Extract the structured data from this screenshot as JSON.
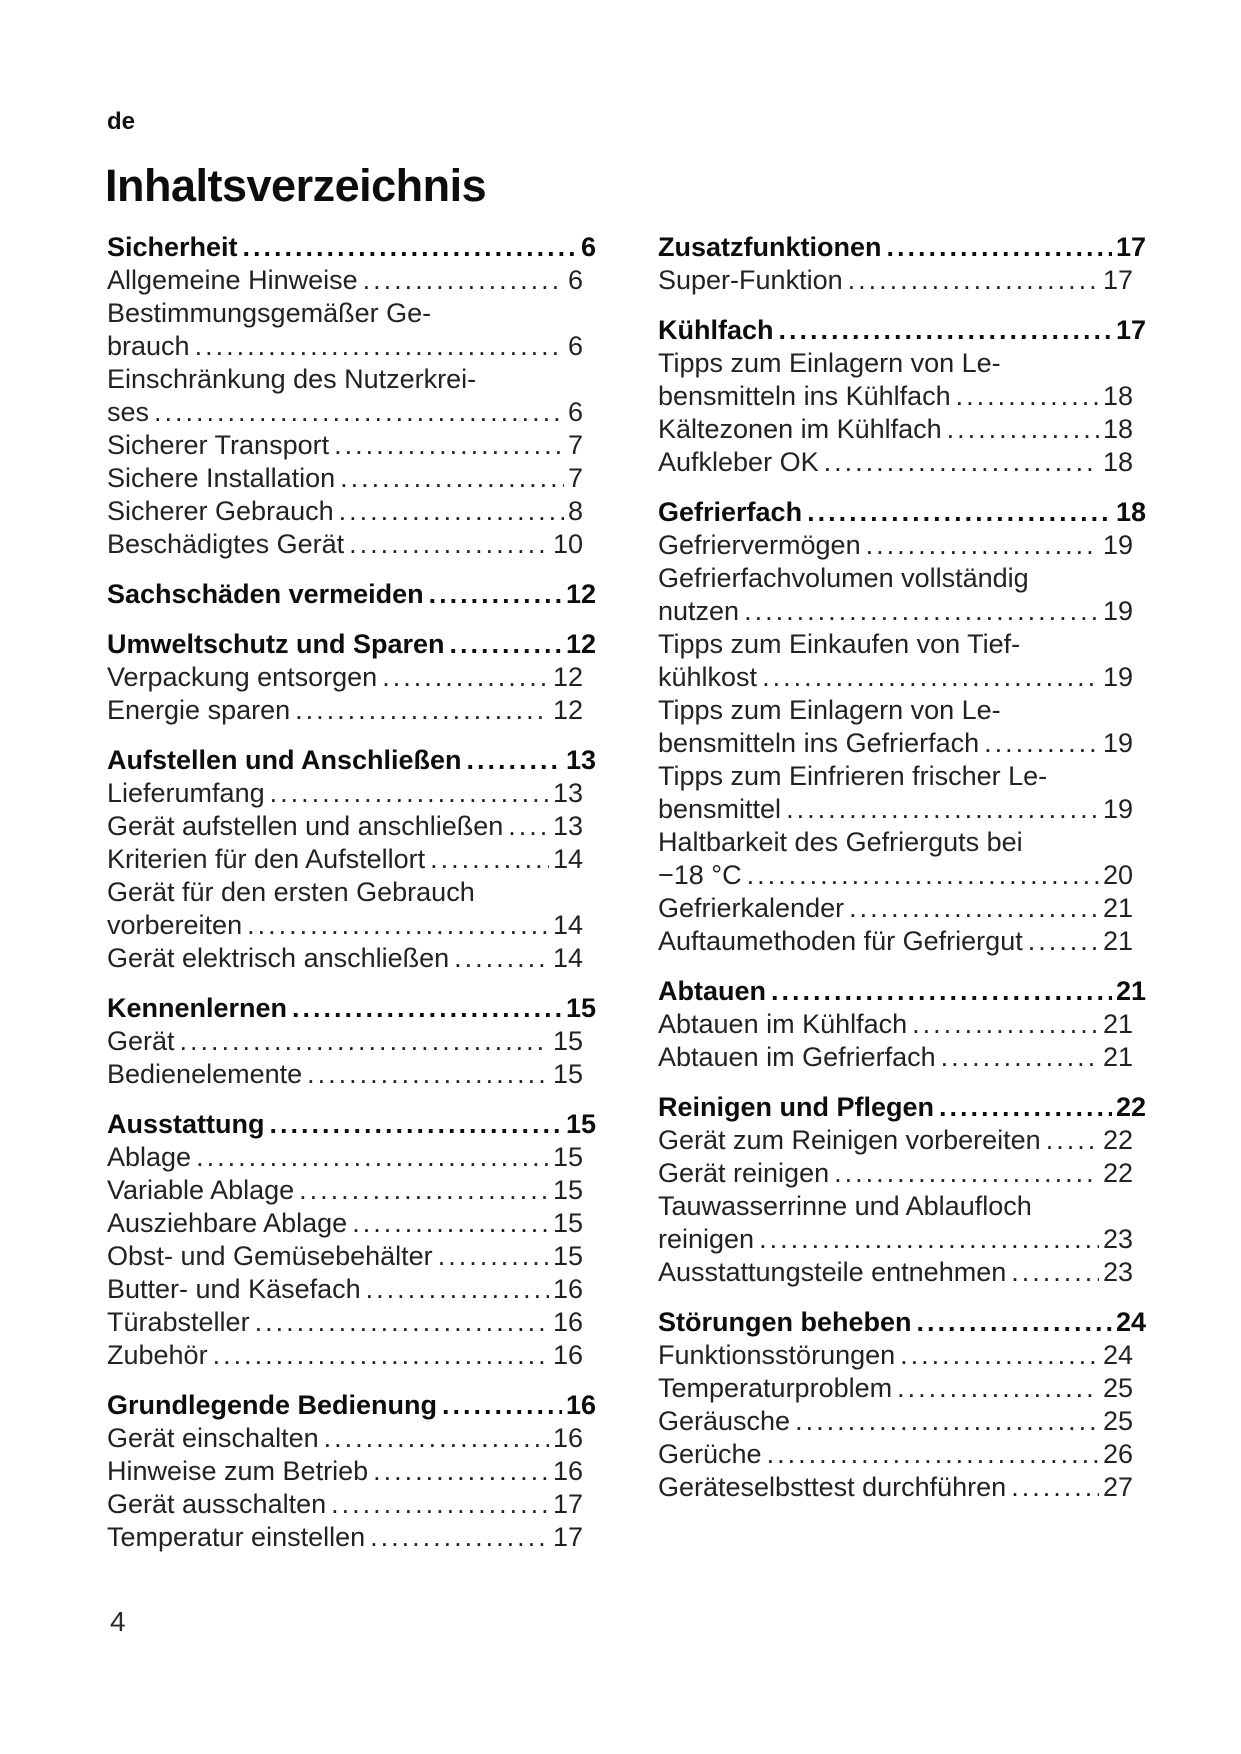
{
  "document": {
    "language_code": "de",
    "title": "Inhaltsverzeichnis",
    "footer_page_number": "4"
  },
  "toc": {
    "left_column": [
      {
        "style": "heading",
        "text": "Sicherheit",
        "page": "6",
        "gap": false
      },
      {
        "style": "entry",
        "text": "Allgemeine Hinweise",
        "page": "6",
        "gap": false
      },
      {
        "style": "entry",
        "text": "Bestimmungsgemäßer Ge-",
        "page": null,
        "gap": false
      },
      {
        "style": "entry",
        "text": "brauch",
        "page": "6",
        "gap": false
      },
      {
        "style": "entry",
        "text": "Einschränkung des Nutzerkrei-",
        "page": null,
        "gap": false
      },
      {
        "style": "entry",
        "text": "ses",
        "page": "6",
        "gap": false
      },
      {
        "style": "entry",
        "text": "Sicherer Transport",
        "page": "7",
        "gap": false
      },
      {
        "style": "entry",
        "text": "Sichere Installation",
        "page": "7",
        "gap": false
      },
      {
        "style": "entry",
        "text": "Sicherer Gebrauch",
        "page": "8",
        "gap": false
      },
      {
        "style": "entry",
        "text": "Beschädigtes Gerät",
        "page": "10",
        "gap": false
      },
      {
        "style": "heading",
        "text": "Sachschäden vermeiden",
        "page": "12",
        "gap": true
      },
      {
        "style": "heading",
        "text": "Umweltschutz und Sparen",
        "page": "12",
        "gap": true
      },
      {
        "style": "entry",
        "text": "Verpackung entsorgen",
        "page": "12",
        "gap": false
      },
      {
        "style": "entry",
        "text": "Energie sparen",
        "page": "12",
        "gap": false
      },
      {
        "style": "heading",
        "text": "Aufstellen und Anschließen",
        "page": "13",
        "gap": true
      },
      {
        "style": "entry",
        "text": "Lieferumfang",
        "page": "13",
        "gap": false
      },
      {
        "style": "entry",
        "text": "Gerät aufstellen und anschließen",
        "page": "13",
        "gap": false
      },
      {
        "style": "entry",
        "text": "Kriterien für den Aufstellort",
        "page": "14",
        "gap": false
      },
      {
        "style": "entry",
        "text": "Gerät für den ersten Gebrauch",
        "page": null,
        "gap": false
      },
      {
        "style": "entry",
        "text": "vorbereiten",
        "page": "14",
        "gap": false
      },
      {
        "style": "entry",
        "text": "Gerät elektrisch anschließen",
        "page": "14",
        "gap": false
      },
      {
        "style": "heading",
        "text": "Kennenlernen",
        "page": "15",
        "gap": true
      },
      {
        "style": "entry",
        "text": "Gerät",
        "page": "15",
        "gap": false
      },
      {
        "style": "entry",
        "text": "Bedienelemente",
        "page": "15",
        "gap": false
      },
      {
        "style": "heading",
        "text": "Ausstattung",
        "page": "15",
        "gap": true
      },
      {
        "style": "entry",
        "text": "Ablage",
        "page": "15",
        "gap": false
      },
      {
        "style": "entry",
        "text": "Variable Ablage",
        "page": "15",
        "gap": false
      },
      {
        "style": "entry",
        "text": "Ausziehbare Ablage",
        "page": "15",
        "gap": false
      },
      {
        "style": "entry",
        "text": "Obst- und Gemüsebehälter",
        "page": "15",
        "gap": false
      },
      {
        "style": "entry",
        "text": "Butter- und Käsefach",
        "page": "16",
        "gap": false
      },
      {
        "style": "entry",
        "text": "Türabsteller",
        "page": "16",
        "gap": false
      },
      {
        "style": "entry",
        "text": "Zubehör",
        "page": "16",
        "gap": false
      },
      {
        "style": "heading",
        "text": "Grundlegende Bedienung",
        "page": "16",
        "gap": true
      },
      {
        "style": "entry",
        "text": "Gerät einschalten",
        "page": "16",
        "gap": false
      },
      {
        "style": "entry",
        "text": "Hinweise zum Betrieb",
        "page": "16",
        "gap": false
      },
      {
        "style": "entry",
        "text": "Gerät ausschalten",
        "page": "17",
        "gap": false
      },
      {
        "style": "entry",
        "text": "Temperatur einstellen",
        "page": "17",
        "gap": false
      }
    ],
    "right_column": [
      {
        "style": "heading",
        "text": "Zusatzfunktionen",
        "page": "17",
        "gap": false
      },
      {
        "style": "entry",
        "text": "Super-Funktion",
        "page": "17",
        "gap": false
      },
      {
        "style": "heading",
        "text": "Kühlfach",
        "page": "17",
        "gap": true
      },
      {
        "style": "entry",
        "text": "Tipps zum Einlagern von Le-",
        "page": null,
        "gap": false
      },
      {
        "style": "entry",
        "text": "bensmitteln ins Kühlfach",
        "page": "18",
        "gap": false
      },
      {
        "style": "entry",
        "text": "Kältezonen im Kühlfach",
        "page": "18",
        "gap": false
      },
      {
        "style": "entry",
        "text": "Aufkleber OK",
        "page": "18",
        "gap": false
      },
      {
        "style": "heading",
        "text": "Gefrierfach",
        "page": "18",
        "gap": true
      },
      {
        "style": "entry",
        "text": "Gefriervermögen",
        "page": "19",
        "gap": false
      },
      {
        "style": "entry",
        "text": "Gefrierfachvolumen vollständig",
        "page": null,
        "gap": false
      },
      {
        "style": "entry",
        "text": "nutzen",
        "page": "19",
        "gap": false
      },
      {
        "style": "entry",
        "text": "Tipps zum Einkaufen von Tief-",
        "page": null,
        "gap": false
      },
      {
        "style": "entry",
        "text": "kühlkost",
        "page": "19",
        "gap": false
      },
      {
        "style": "entry",
        "text": "Tipps zum Einlagern von Le-",
        "page": null,
        "gap": false
      },
      {
        "style": "entry",
        "text": "bensmitteln ins Gefrierfach",
        "page": "19",
        "gap": false
      },
      {
        "style": "entry",
        "text": "Tipps zum Einfrieren frischer Le-",
        "page": null,
        "gap": false
      },
      {
        "style": "entry",
        "text": "bensmittel",
        "page": "19",
        "gap": false
      },
      {
        "style": "entry",
        "text": "Haltbarkeit des Gefrierguts bei",
        "page": null,
        "gap": false
      },
      {
        "style": "entry",
        "text": "−18 °C",
        "page": "20",
        "gap": false
      },
      {
        "style": "entry",
        "text": "Gefrierkalender",
        "page": "21",
        "gap": false
      },
      {
        "style": "entry",
        "text": "Auftaumethoden für Gefriergut",
        "page": "21",
        "gap": false
      },
      {
        "style": "heading",
        "text": "Abtauen",
        "page": "21",
        "gap": true
      },
      {
        "style": "entry",
        "text": "Abtauen im Kühlfach",
        "page": "21",
        "gap": false
      },
      {
        "style": "entry",
        "text": "Abtauen im Gefrierfach",
        "page": "21",
        "gap": false
      },
      {
        "style": "heading",
        "text": "Reinigen und Pflegen",
        "page": "22",
        "gap": true
      },
      {
        "style": "entry",
        "text": "Gerät zum Reinigen vorbereiten",
        "page": "22",
        "gap": false
      },
      {
        "style": "entry",
        "text": "Gerät reinigen",
        "page": "22",
        "gap": false
      },
      {
        "style": "entry",
        "text": "Tauwasserrinne und Ablaufloch",
        "page": null,
        "gap": false
      },
      {
        "style": "entry",
        "text": "reinigen",
        "page": "23",
        "gap": false
      },
      {
        "style": "entry",
        "text": "Ausstattungsteile entnehmen",
        "page": "23",
        "gap": false
      },
      {
        "style": "heading",
        "text": "Störungen beheben",
        "page": "24",
        "gap": true
      },
      {
        "style": "entry",
        "text": "Funktionsstörungen",
        "page": "24",
        "gap": false
      },
      {
        "style": "entry",
        "text": "Temperaturproblem",
        "page": "25",
        "gap": false
      },
      {
        "style": "entry",
        "text": "Geräusche",
        "page": "25",
        "gap": false
      },
      {
        "style": "entry",
        "text": "Gerüche",
        "page": "26",
        "gap": false
      },
      {
        "style": "entry",
        "text": "Geräteselbsttest durchführen",
        "page": "27",
        "gap": false
      }
    ]
  }
}
